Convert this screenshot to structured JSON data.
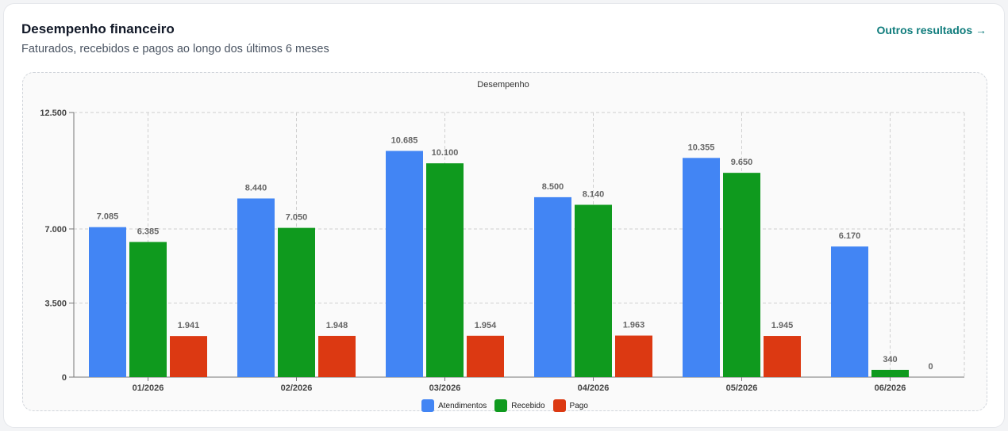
{
  "header": {
    "title": "Desempenho financeiro",
    "subtitle": "Faturados, recebidos e pagos ao longo dos últimos 6 meses",
    "link_label": "Outros resultados →"
  },
  "colors": {
    "accent": "#0f7c7c"
  },
  "chart_data": {
    "type": "bar",
    "title": "Desempenho",
    "categories": [
      "01/2026",
      "02/2026",
      "03/2026",
      "04/2026",
      "05/2026",
      "06/2026"
    ],
    "series": [
      {
        "name": "Atendimentos",
        "color": "#4285f4",
        "values": [
          7085,
          8440,
          10685,
          8500,
          10355,
          6170
        ]
      },
      {
        "name": "Recebido",
        "color": "#0f9a1e",
        "values": [
          6385,
          7050,
          10100,
          8140,
          9650,
          340
        ]
      },
      {
        "name": "Pago",
        "color": "#dc3912",
        "values": [
          1941,
          1948,
          1954,
          1963,
          1945,
          0
        ]
      }
    ],
    "y_ticks": [
      0,
      3500,
      7000,
      12500
    ],
    "ylim": [
      0,
      12500
    ],
    "grid": true,
    "legend": "bottom"
  }
}
